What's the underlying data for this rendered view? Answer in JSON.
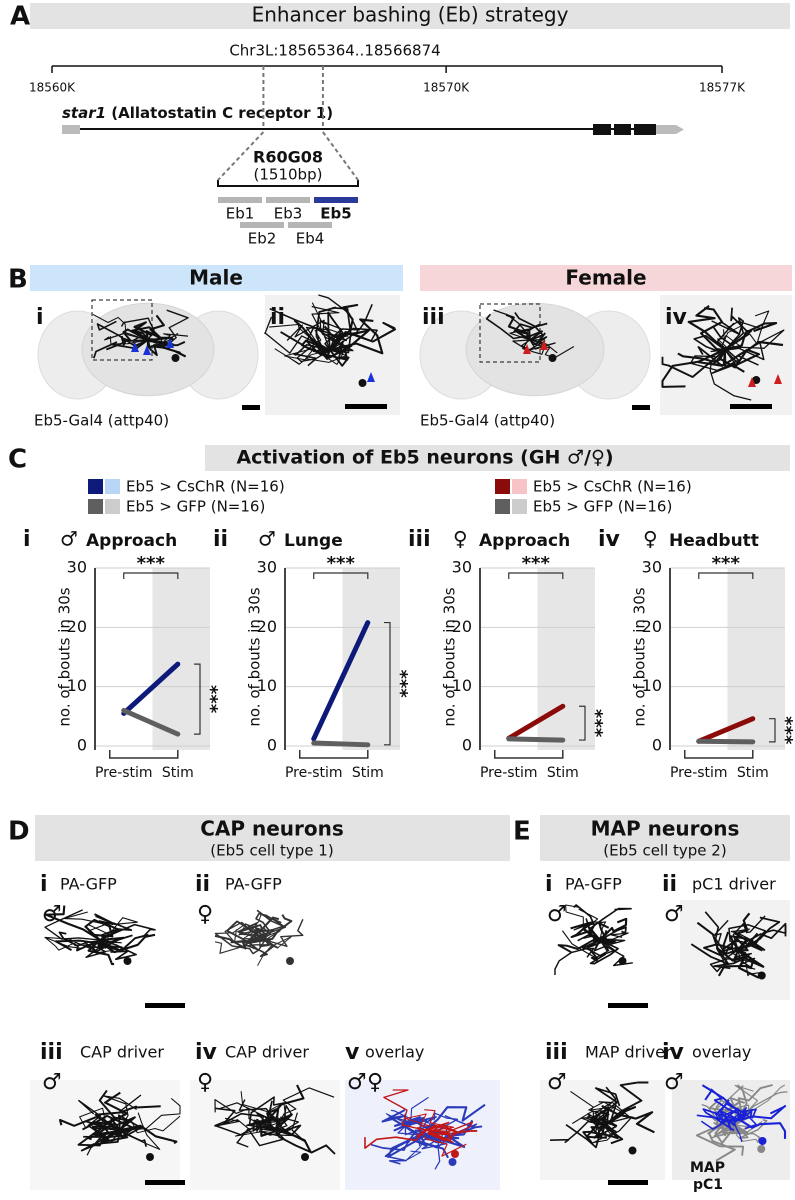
{
  "panel_a": {
    "letter": "A",
    "title": "Enhancer bashing (Eb) strategy",
    "region": "Chr3L:18565364..18566874",
    "region_start": 18565364,
    "region_end": 18566874,
    "scale": {
      "xlim": [
        18560000,
        18577000
      ],
      "ticks": [
        {
          "value": 18560000,
          "label": "18560K"
        },
        {
          "value": 18570000,
          "label": "18570K"
        },
        {
          "value": 18577000,
          "label": "18577K"
        }
      ]
    },
    "gene_name": "star1",
    "gene_description": "(Allatostatin C receptor 1)",
    "enhancer": "R60G08",
    "enhancer_size": "(1510bp)",
    "fragments": [
      "Eb1",
      "Eb2",
      "Eb3",
      "Eb4",
      "Eb5"
    ]
  },
  "panel_b": {
    "letter": "B",
    "male": "Male",
    "female": "Female",
    "subpanels": [
      "i",
      "ii",
      "iii",
      "iv"
    ],
    "driver": "Eb5-Gal4 (attp40)"
  },
  "panel_c": {
    "letter": "C",
    "title": "Activation of Eb5 neurons (GH ♂/♀)"
  },
  "chart_data": [
    {
      "type": "line",
      "numeral": "i",
      "sex": "♂",
      "title": "Approach",
      "ylabel": "no. of bouts in 30s",
      "categories": [
        "Pre-stim",
        "Stim"
      ],
      "ylim": [
        0,
        30
      ],
      "yticks": [
        0,
        10,
        20,
        30
      ],
      "grid": true,
      "sig_top": "***",
      "sig_right": "***",
      "series": [
        {
          "name": "Eb5 > CsChR (N=16)",
          "color": "#0d1a7a",
          "light_color": "#b9d6f6",
          "values": [
            5.5,
            13.8
          ]
        },
        {
          "name": "Eb5 > GFP (N=16)",
          "color": "#5f5f5f",
          "light_color": "#cccccc",
          "values": [
            6,
            2
          ]
        }
      ]
    },
    {
      "type": "line",
      "numeral": "ii",
      "sex": "♂",
      "title": "Lunge",
      "ylabel": "no. of bouts in 30s",
      "categories": [
        "Pre-stim",
        "Stim"
      ],
      "ylim": [
        0,
        30
      ],
      "yticks": [
        0,
        10,
        20,
        30
      ],
      "grid": true,
      "sig_top": "***",
      "sig_right": "***",
      "series": [
        {
          "name": "Eb5 > CsChR (N=16)",
          "color": "#0d1a7a",
          "light_color": "#b9d6f6",
          "values": [
            1.2,
            20.8
          ]
        },
        {
          "name": "Eb5 > GFP (N=16)",
          "color": "#5f5f5f",
          "light_color": "#cccccc",
          "values": [
            0.5,
            0.2
          ]
        }
      ]
    },
    {
      "type": "line",
      "numeral": "iii",
      "sex": "♀",
      "title": "Approach",
      "ylabel": "no. of bouts in 30s",
      "categories": [
        "Pre-stim",
        "Stim"
      ],
      "ylim": [
        0,
        30
      ],
      "yticks": [
        0,
        10,
        20,
        30
      ],
      "grid": true,
      "sig_top": "***",
      "sig_right": "***",
      "series": [
        {
          "name": "Eb5 > CsChR (N=16)",
          "color": "#8b0a0a",
          "light_color": "#f7c3c6",
          "values": [
            1.3,
            6.7
          ]
        },
        {
          "name": "Eb5 > GFP (N=16)",
          "color": "#5f5f5f",
          "light_color": "#cccccc",
          "values": [
            1.2,
            1
          ]
        }
      ]
    },
    {
      "type": "line",
      "numeral": "iv",
      "sex": "♀",
      "title": "Headbutt",
      "ylabel": "no. of bouts in 30s",
      "categories": [
        "Pre-stim",
        "Stim"
      ],
      "ylim": [
        0,
        30
      ],
      "yticks": [
        0,
        10,
        20,
        30
      ],
      "grid": true,
      "sig_top": "***",
      "sig_right": "***",
      "series": [
        {
          "name": "Eb5 > CsChR (N=16)",
          "color": "#8b0a0a",
          "light_color": "#f7c3c6",
          "values": [
            0.8,
            4.6
          ]
        },
        {
          "name": "Eb5 > GFP (N=16)",
          "color": "#5f5f5f",
          "light_color": "#cccccc",
          "values": [
            0.8,
            0.7
          ]
        }
      ]
    }
  ],
  "panel_d": {
    "letter": "D",
    "title": "CAP neurons",
    "subtitle": "(Eb5 cell type 1)",
    "items": [
      {
        "numeral": "i",
        "label": "PA-GFP",
        "sex": "♂"
      },
      {
        "numeral": "ii",
        "label": "PA-GFP",
        "sex": "♀"
      },
      {
        "numeral": "iii",
        "label": "CAP driver",
        "sex": "♂"
      },
      {
        "numeral": "iv",
        "label": "CAP driver",
        "sex": "♀"
      },
      {
        "numeral": "v",
        "label": "overlay",
        "sex": "♂",
        "sex2": "♀"
      }
    ]
  },
  "panel_e": {
    "letter": "E",
    "title": "MAP neurons",
    "subtitle": "(Eb5 cell type 2)",
    "items": [
      {
        "numeral": "i",
        "label": "PA-GFP",
        "sex": "♂"
      },
      {
        "numeral": "ii",
        "label": "pC1 driver",
        "sex": "♂"
      },
      {
        "numeral": "iii",
        "label": "MAP driver",
        "sex": "♂"
      },
      {
        "numeral": "iv",
        "label": "overlay",
        "sex": "♂"
      }
    ],
    "overlay_labels": [
      "MAP",
      "pC1"
    ]
  }
}
